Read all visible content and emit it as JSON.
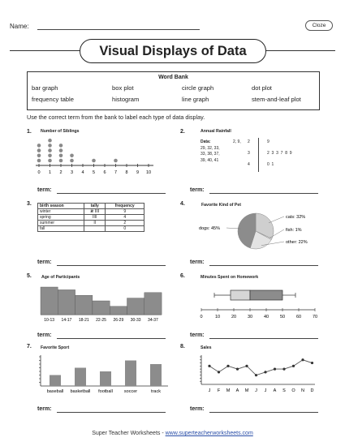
{
  "header": {
    "name_label": "Name:",
    "cloze_label": "Cloze",
    "title": "Visual Displays of Data"
  },
  "word_bank": {
    "title": "Word Bank",
    "items": [
      "bar graph",
      "box plot",
      "circle graph",
      "dot plot",
      "frequency table",
      "histogram",
      "line graph",
      "stem-and-leaf plot"
    ]
  },
  "instructions": "Use the correct term from the bank to label each type of data display.",
  "term_label": "term:",
  "problems": [
    {
      "number": "1.",
      "title": "Number of Siblings"
    },
    {
      "number": "2.",
      "title": "Annual Rainfall"
    },
    {
      "number": "3.",
      "title": ""
    },
    {
      "number": "4.",
      "title": "Favorite Kind of Pet"
    },
    {
      "number": "5.",
      "title": "Age of Participants"
    },
    {
      "number": "6.",
      "title": "Minutes Spent on Homework"
    },
    {
      "number": "7.",
      "title": "Favorite Sport"
    },
    {
      "number": "8.",
      "title": "Sales"
    }
  ],
  "dot_plot": {
    "ticks": [
      "0",
      "1",
      "2",
      "3",
      "4",
      "5",
      "6",
      "7",
      "8",
      "9",
      "10"
    ],
    "counts": [
      4,
      5,
      4,
      2,
      0,
      1,
      0,
      1,
      0,
      0,
      0
    ]
  },
  "stem_leaf": {
    "data_label": "Data:",
    "data_lines": [
      "2, 9,",
      "29, 32, 33,",
      "33, 38, 37,",
      "39, 40, 41"
    ],
    "rows": [
      {
        "stem": "2",
        "leaves": "9"
      },
      {
        "stem": "3",
        "leaves": "2  3  3  7  8  9"
      },
      {
        "stem": "4",
        "leaves": "0  1"
      }
    ]
  },
  "freq_table": {
    "headers": [
      "birth season",
      "tally",
      "frequency"
    ],
    "rows": [
      [
        "winter",
        "𝍸 IIII",
        "9"
      ],
      [
        "spring",
        "IIII",
        "4"
      ],
      [
        "summer",
        "II",
        "2"
      ],
      [
        "fall",
        "",
        "0"
      ]
    ]
  },
  "pie": {
    "slices": [
      {
        "label": "cats: 32%",
        "value": 32,
        "color": "#cfcfcf"
      },
      {
        "label": "fish: 1%",
        "value": 1,
        "color": "#f0f0f0"
      },
      {
        "label": "other: 22%",
        "value": 22,
        "color": "#e3e3e3"
      },
      {
        "label": "dogs: 45%",
        "value": 45,
        "color": "#8c8c8c"
      }
    ]
  },
  "histogram": {
    "categories": [
      "10-13",
      "14-17",
      "18-21",
      "22-25",
      "26-29",
      "30-33",
      "34-37"
    ],
    "values": [
      10,
      9,
      7,
      5,
      3,
      6,
      8
    ],
    "ymax": 10
  },
  "box_plot": {
    "ticks": [
      "0",
      "10",
      "20",
      "30",
      "40",
      "50",
      "60",
      "70"
    ],
    "min": 8,
    "q1": 18,
    "median": 30,
    "q3": 50,
    "max": 58,
    "axis_max": 70
  },
  "bar_graph": {
    "categories": [
      "baseball",
      "basketball",
      "football",
      "soccer",
      "track"
    ],
    "values": [
      3,
      5,
      4,
      7,
      6
    ],
    "ymax": 8
  },
  "line_graph": {
    "categories": [
      "J",
      "F",
      "M",
      "A",
      "M",
      "J",
      "J",
      "A",
      "S",
      "O",
      "N",
      "D"
    ],
    "values": [
      6,
      4,
      6,
      5,
      6,
      3,
      4,
      5,
      5,
      6,
      8,
      7
    ],
    "ymax": 9
  },
  "footer": {
    "prefix": "Super Teacher Worksheets - ",
    "link": "www.superteacherworksheets.com"
  }
}
